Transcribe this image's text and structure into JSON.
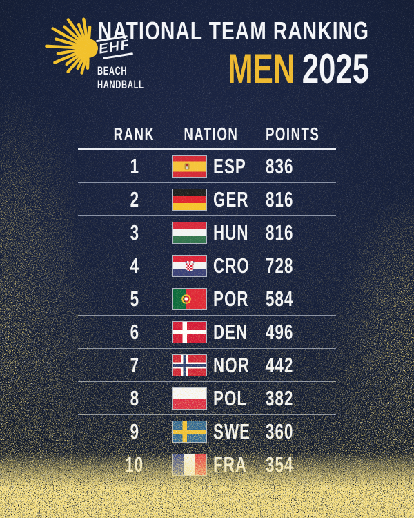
{
  "page": {
    "background": "#141e38",
    "accent_gold": "#eeb92f",
    "text_white": "#f3f5f8"
  },
  "logo": {
    "ehf": "EHF",
    "beach": "BEACH",
    "handball": "HANDBALL",
    "sunburst_color": "#f2c12b"
  },
  "header": {
    "title": "NATIONAL TEAM RANKING",
    "men": "MEN",
    "year": "2025"
  },
  "table": {
    "columns": [
      "RANK",
      "NATION",
      "POINTS"
    ],
    "rows": [
      {
        "rank": "1",
        "code": "ESP",
        "country": "Spain",
        "points": "836"
      },
      {
        "rank": "2",
        "code": "GER",
        "country": "Germany",
        "points": "816"
      },
      {
        "rank": "3",
        "code": "HUN",
        "country": "Hungary",
        "points": "816"
      },
      {
        "rank": "4",
        "code": "CRO",
        "country": "Croatia",
        "points": "728"
      },
      {
        "rank": "5",
        "code": "POR",
        "country": "Portugal",
        "points": "584"
      },
      {
        "rank": "6",
        "code": "DEN",
        "country": "Denmark",
        "points": "496"
      },
      {
        "rank": "7",
        "code": "NOR",
        "country": "Norway",
        "points": "442"
      },
      {
        "rank": "8",
        "code": "POL",
        "country": "Poland",
        "points": "382"
      },
      {
        "rank": "9",
        "code": "SWE",
        "country": "Sweden",
        "points": "360"
      },
      {
        "rank": "10",
        "code": "FRA",
        "country": "France",
        "points": "354"
      }
    ]
  },
  "chart_data": {
    "type": "table",
    "title": "NATIONAL TEAM RANKING MEN 2025",
    "columns": [
      "RANK",
      "NATION",
      "POINTS"
    ],
    "rows": [
      [
        1,
        "ESP",
        836
      ],
      [
        2,
        "GER",
        816
      ],
      [
        3,
        "HUN",
        816
      ],
      [
        4,
        "CRO",
        728
      ],
      [
        5,
        "POR",
        584
      ],
      [
        6,
        "DEN",
        496
      ],
      [
        7,
        "NOR",
        442
      ],
      [
        8,
        "POL",
        382
      ],
      [
        9,
        "SWE",
        360
      ],
      [
        10,
        "FRA",
        354
      ]
    ]
  }
}
